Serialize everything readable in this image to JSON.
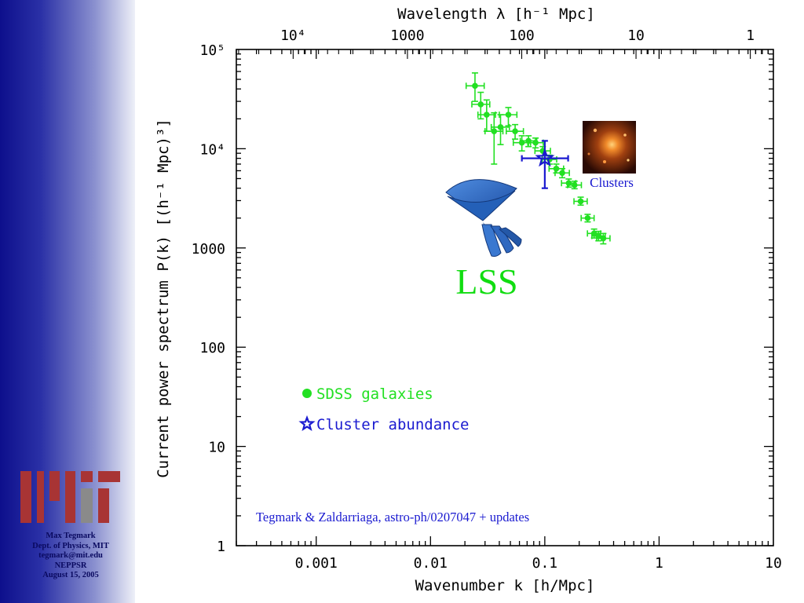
{
  "footer": {
    "line1": "Max Tegmark",
    "line2": "Dept. of Physics, MIT",
    "line3": "tegmark@mit.edu",
    "line4": "NEPPSR",
    "line5": "August 15, 2005"
  },
  "colors": {
    "sdss": "#22e022",
    "cluster": "#1a1ad0",
    "lss_label": "#11dd11",
    "sidebar_dark": "#0d0f8c",
    "mit_red": "#a83434",
    "mit_gray": "#8a8a8a"
  },
  "icons": {
    "logo": "mit-logo-icon",
    "survey": "galaxy-survey-wedge-icon",
    "cluster_image": "galaxy-cluster-image-icon"
  },
  "chart_data": {
    "type": "scatter",
    "xlabel": "Wavenumber k [h/Mpc]",
    "ylabel": "Current power spectrum P(k) [(h⁻¹ Mpc)³]",
    "top_xlabel": "Wavelength λ [h⁻¹ Mpc]",
    "x_scale": "log",
    "y_scale": "log",
    "xlim": [
      0.0002,
      10
    ],
    "ylim": [
      1,
      100000
    ],
    "grid": false,
    "xtick_labels": [
      {
        "value": 0.001,
        "label": "0.001"
      },
      {
        "value": 0.01,
        "label": "0.01"
      },
      {
        "value": 0.1,
        "label": "0.1"
      },
      {
        "value": 1,
        "label": "1"
      },
      {
        "value": 10,
        "label": "10"
      }
    ],
    "ytick_labels": [
      {
        "value": 1,
        "label": "1"
      },
      {
        "value": 10,
        "label": "10"
      },
      {
        "value": 100,
        "label": "100"
      },
      {
        "value": 1000,
        "label": "1000"
      },
      {
        "value": 10000,
        "label": "10⁴"
      },
      {
        "value": 100000,
        "label": "10⁵"
      }
    ],
    "top_tick_labels": [
      {
        "value": 10000,
        "label": "10⁴"
      },
      {
        "value": 1000,
        "label": "1000"
      },
      {
        "value": 100,
        "label": "100"
      },
      {
        "value": 10,
        "label": "10"
      },
      {
        "value": 1,
        "label": "1"
      }
    ],
    "series": [
      {
        "name": "SDSS galaxies",
        "marker": "circle",
        "color": "#22e022",
        "points": [
          {
            "x": 0.0245,
            "y": 43000,
            "ylo": 30000,
            "yhi": 58000,
            "xlo": 0.0205,
            "xhi": 0.0295
          },
          {
            "x": 0.0275,
            "y": 28000,
            "ylo": 20000,
            "yhi": 37000,
            "xlo": 0.023,
            "xhi": 0.033
          },
          {
            "x": 0.031,
            "y": 22000,
            "ylo": 15000,
            "yhi": 31000,
            "xlo": 0.026,
            "xhi": 0.037
          },
          {
            "x": 0.036,
            "y": 15000,
            "ylo": 7000,
            "yhi": 23000,
            "xlo": 0.03,
            "xhi": 0.043
          },
          {
            "x": 0.041,
            "y": 16500,
            "ylo": 11000,
            "yhi": 22000,
            "xlo": 0.034,
            "xhi": 0.049
          },
          {
            "x": 0.048,
            "y": 22000,
            "ylo": 17000,
            "yhi": 26000,
            "xlo": 0.04,
            "xhi": 0.057
          },
          {
            "x": 0.055,
            "y": 15000,
            "ylo": 12500,
            "yhi": 17500,
            "xlo": 0.046,
            "xhi": 0.065
          },
          {
            "x": 0.063,
            "y": 11500,
            "ylo": 9500,
            "yhi": 13500,
            "xlo": 0.053,
            "xhi": 0.075
          },
          {
            "x": 0.072,
            "y": 12000,
            "ylo": 10500,
            "yhi": 13500,
            "xlo": 0.061,
            "xhi": 0.085
          },
          {
            "x": 0.083,
            "y": 11500,
            "ylo": 10200,
            "yhi": 12800,
            "xlo": 0.071,
            "xhi": 0.097
          },
          {
            "x": 0.096,
            "y": 9500,
            "ylo": 8500,
            "yhi": 10500,
            "xlo": 0.082,
            "xhi": 0.112
          },
          {
            "x": 0.11,
            "y": 7800,
            "ylo": 7000,
            "yhi": 8600,
            "xlo": 0.095,
            "xhi": 0.127
          },
          {
            "x": 0.126,
            "y": 6300,
            "ylo": 5700,
            "yhi": 7000,
            "xlo": 0.109,
            "xhi": 0.146
          },
          {
            "x": 0.142,
            "y": 5700,
            "ylo": 5100,
            "yhi": 6300,
            "xlo": 0.123,
            "xhi": 0.164
          },
          {
            "x": 0.162,
            "y": 4500,
            "ylo": 4100,
            "yhi": 4950,
            "xlo": 0.14,
            "xhi": 0.187
          },
          {
            "x": 0.182,
            "y": 4300,
            "ylo": 3950,
            "yhi": 4700,
            "xlo": 0.158,
            "xhi": 0.209
          },
          {
            "x": 0.206,
            "y": 2950,
            "ylo": 2700,
            "yhi": 3250,
            "xlo": 0.18,
            "xhi": 0.235
          },
          {
            "x": 0.237,
            "y": 2000,
            "ylo": 1830,
            "yhi": 2180,
            "xlo": 0.208,
            "xhi": 0.27
          },
          {
            "x": 0.27,
            "y": 1400,
            "ylo": 1260,
            "yhi": 1550,
            "xlo": 0.236,
            "xhi": 0.308
          },
          {
            "x": 0.295,
            "y": 1320,
            "ylo": 1180,
            "yhi": 1470,
            "xlo": 0.258,
            "xhi": 0.338
          },
          {
            "x": 0.325,
            "y": 1250,
            "ylo": 1100,
            "yhi": 1400,
            "xlo": 0.284,
            "xhi": 0.372
          }
        ]
      },
      {
        "name": "Cluster abundance",
        "marker": "star",
        "color": "#1a1ad0",
        "points": [
          {
            "x": 0.1,
            "y": 8000,
            "ylo": 4000,
            "yhi": 12000,
            "xlo": 0.063,
            "xhi": 0.16
          }
        ]
      }
    ],
    "legend": {
      "placement": "lower-left",
      "entries": [
        {
          "label": "SDSS galaxies",
          "color": "#22e022",
          "marker": "circle"
        },
        {
          "label": "Cluster abundance",
          "color": "#1a1ad0",
          "marker": "star"
        }
      ]
    },
    "annotations": {
      "lss": "LSS",
      "clusters": "Clusters",
      "citation": "Tegmark & Zaldarriaga, astro-ph/0207047 + updates"
    }
  }
}
